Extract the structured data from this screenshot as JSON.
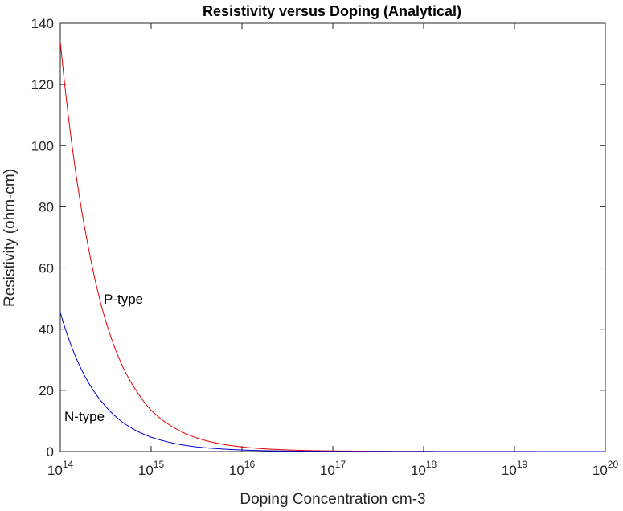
{
  "chart_data": {
    "type": "line",
    "title": "Resistivity versus Doping (Analytical)",
    "xlabel": "Doping Concentration cm-3",
    "ylabel": "Resistivity (ohm-cm)",
    "xscale": "log",
    "xlim": [
      100000000000000.0,
      1e+20
    ],
    "ylim": [
      0,
      140
    ],
    "x_ticks": [
      {
        "base": "10",
        "exp": "14",
        "value": 100000000000000.0
      },
      {
        "base": "10",
        "exp": "15",
        "value": 1000000000000000.0
      },
      {
        "base": "10",
        "exp": "16",
        "value": 1e+16
      },
      {
        "base": "10",
        "exp": "17",
        "value": 1e+17
      },
      {
        "base": "10",
        "exp": "18",
        "value": 1e+18
      },
      {
        "base": "10",
        "exp": "19",
        "value": 1e+19
      },
      {
        "base": "10",
        "exp": "20",
        "value": 1e+20
      }
    ],
    "y_ticks": [
      "0",
      "20",
      "40",
      "60",
      "80",
      "100",
      "120",
      "140"
    ],
    "grid": false,
    "series": [
      {
        "name": "P-type",
        "color": "#e00000",
        "x": [
          100000000000000.0,
          150000000000000.0,
          200000000000000.0,
          300000000000000.0,
          500000000000000.0,
          700000000000000.0,
          1000000000000000.0,
          1500000000000000.0,
          2000000000000000.0,
          3000000000000000.0,
          5000000000000000.0,
          7000000000000000.0,
          1e+16,
          2e+16,
          5e+16,
          1e+17,
          1e+18,
          1e+19,
          1e+20
        ],
        "y": [
          134,
          90,
          68,
          45,
          27,
          19.5,
          13.5,
          9.2,
          7,
          4.7,
          2.9,
          2.1,
          1.5,
          0.8,
          0.35,
          0.2,
          0.05,
          0.02,
          0.01
        ]
      },
      {
        "name": "N-type",
        "color": "#0000c8",
        "x": [
          100000000000000.0,
          150000000000000.0,
          200000000000000.0,
          300000000000000.0,
          500000000000000.0,
          700000000000000.0,
          1000000000000000.0,
          1500000000000000.0,
          2000000000000000.0,
          3000000000000000.0,
          5000000000000000.0,
          7000000000000000.0,
          1e+16,
          2e+16,
          5e+16,
          1e+17,
          1e+18,
          1e+19,
          1e+20
        ],
        "y": [
          45.5,
          30.5,
          23,
          15.5,
          9.3,
          6.7,
          4.7,
          3.2,
          2.4,
          1.6,
          1,
          0.72,
          0.5,
          0.26,
          0.11,
          0.06,
          0.02,
          0.005,
          0.002
        ]
      }
    ],
    "annotations": [
      {
        "text": "P-type",
        "series": 0
      },
      {
        "text": "N-type",
        "series": 1
      }
    ]
  }
}
